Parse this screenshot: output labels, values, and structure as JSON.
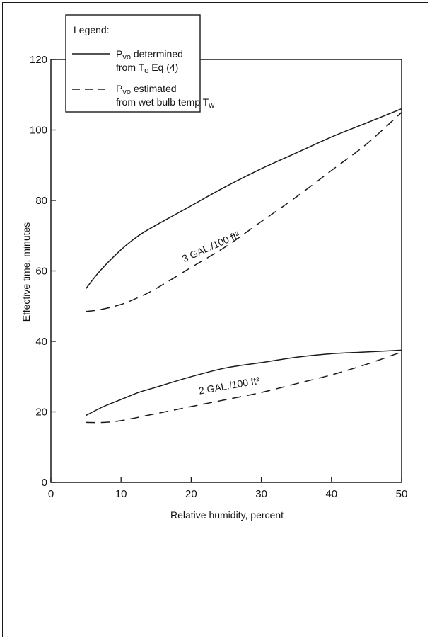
{
  "chart_data": {
    "type": "line",
    "title": "",
    "xlabel": "Relative humidity, percent",
    "ylabel": "Effective time, minutes",
    "xlim": [
      0,
      50
    ],
    "ylim": [
      0,
      120
    ],
    "x_ticks": [
      0,
      10,
      20,
      30,
      40,
      50
    ],
    "y_ticks": [
      0,
      20,
      40,
      60,
      80,
      100,
      120
    ],
    "grid": false,
    "legend_placement": "top-left",
    "legend": {
      "title": "Legend:",
      "entries": [
        {
          "line1_main": "P",
          "line1_sub": "vo",
          "line1_rest": " determined",
          "line2_main": "from T",
          "line2_sub": "o",
          "line2_rest": " Eq (4)",
          "style": "solid"
        },
        {
          "line1_main": "P",
          "line1_sub": "vo",
          "line1_rest": " estimated",
          "line2_main": "from wet bulb temp T",
          "line2_sub": "w",
          "line2_rest": "",
          "style": "dashed"
        }
      ]
    },
    "curve_labels": [
      {
        "text": "3 GAL./100 ft²",
        "x": 23,
        "y": 66,
        "angle": -24
      },
      {
        "text": "2 GAL./100 ft²",
        "x": 25.5,
        "y": 26.5,
        "angle": -10
      }
    ],
    "series": [
      {
        "style": "solid",
        "group": "3 GAL./100 ft²",
        "x": [
          5,
          7,
          10,
          12.5,
          15,
          20,
          25,
          30,
          35,
          40,
          45,
          50
        ],
        "values": [
          55,
          60,
          66,
          70,
          73,
          78.5,
          84,
          89,
          93.5,
          98,
          102,
          106
        ]
      },
      {
        "style": "dashed",
        "group": "3 GAL./100 ft²",
        "x": [
          5,
          7,
          10,
          12.5,
          15,
          20,
          25,
          30,
          35,
          40,
          45,
          50
        ],
        "values": [
          48.5,
          49,
          50.5,
          52.5,
          55,
          61,
          67,
          74,
          81,
          88.5,
          96,
          105
        ]
      },
      {
        "style": "solid",
        "group": "2 GAL./100 ft²",
        "x": [
          5,
          7.5,
          10,
          12.5,
          15,
          20,
          25,
          30,
          35,
          40,
          45,
          50
        ],
        "values": [
          19,
          21.5,
          23.5,
          25.5,
          27,
          30,
          32.5,
          34,
          35.5,
          36.5,
          37,
          37.5
        ]
      },
      {
        "style": "dashed",
        "group": "2 GAL./100 ft²",
        "x": [
          5,
          7.5,
          10,
          15,
          20,
          25,
          30,
          35,
          40,
          45,
          50
        ],
        "values": [
          17,
          17,
          17.5,
          19.5,
          21.5,
          23.5,
          25.5,
          28,
          30.5,
          33.5,
          37
        ]
      }
    ]
  }
}
